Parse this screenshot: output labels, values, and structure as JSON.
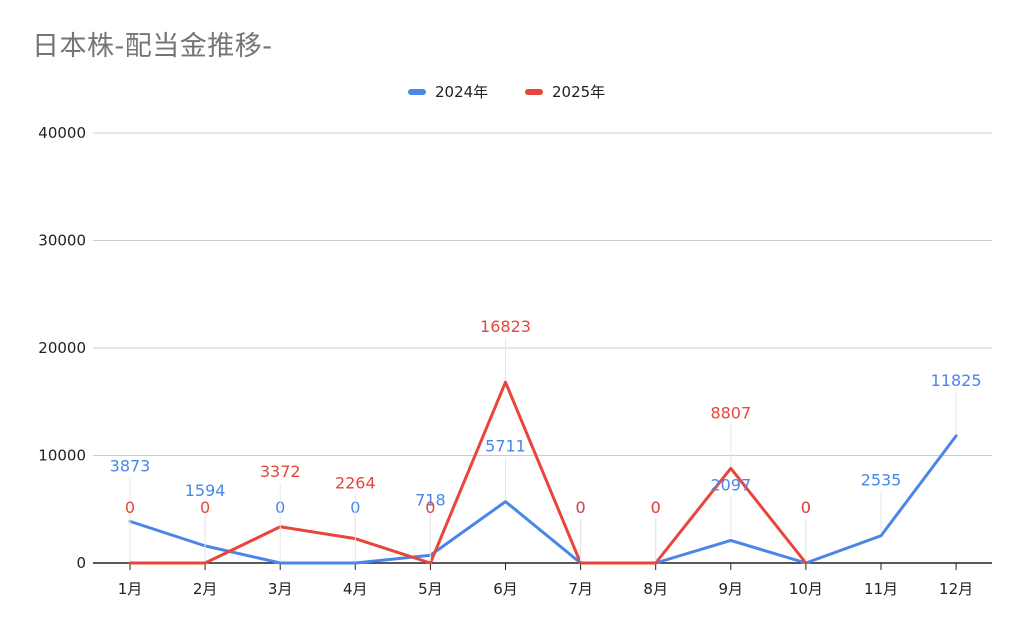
{
  "chart_data": {
    "type": "line",
    "title": "日本株-配当金推移-",
    "categories": [
      "1月",
      "2月",
      "3月",
      "4月",
      "5月",
      "6月",
      "7月",
      "8月",
      "9月",
      "10月",
      "11月",
      "12月"
    ],
    "series": [
      {
        "name": "2024年",
        "color": "#4a86e8",
        "values": [
          3873,
          1594,
          0,
          0,
          718,
          5711,
          0,
          0,
          2097,
          0,
          2535,
          11825
        ]
      },
      {
        "name": "2025年",
        "color": "#e8453c",
        "values": [
          0,
          0,
          3372,
          2264,
          0,
          16823,
          0,
          0,
          8807,
          0,
          null,
          null
        ]
      }
    ],
    "ylim": [
      0,
      40000
    ],
    "yticks": [
      0,
      10000,
      20000,
      30000,
      40000
    ],
    "grid": true,
    "legend_position": "top"
  }
}
